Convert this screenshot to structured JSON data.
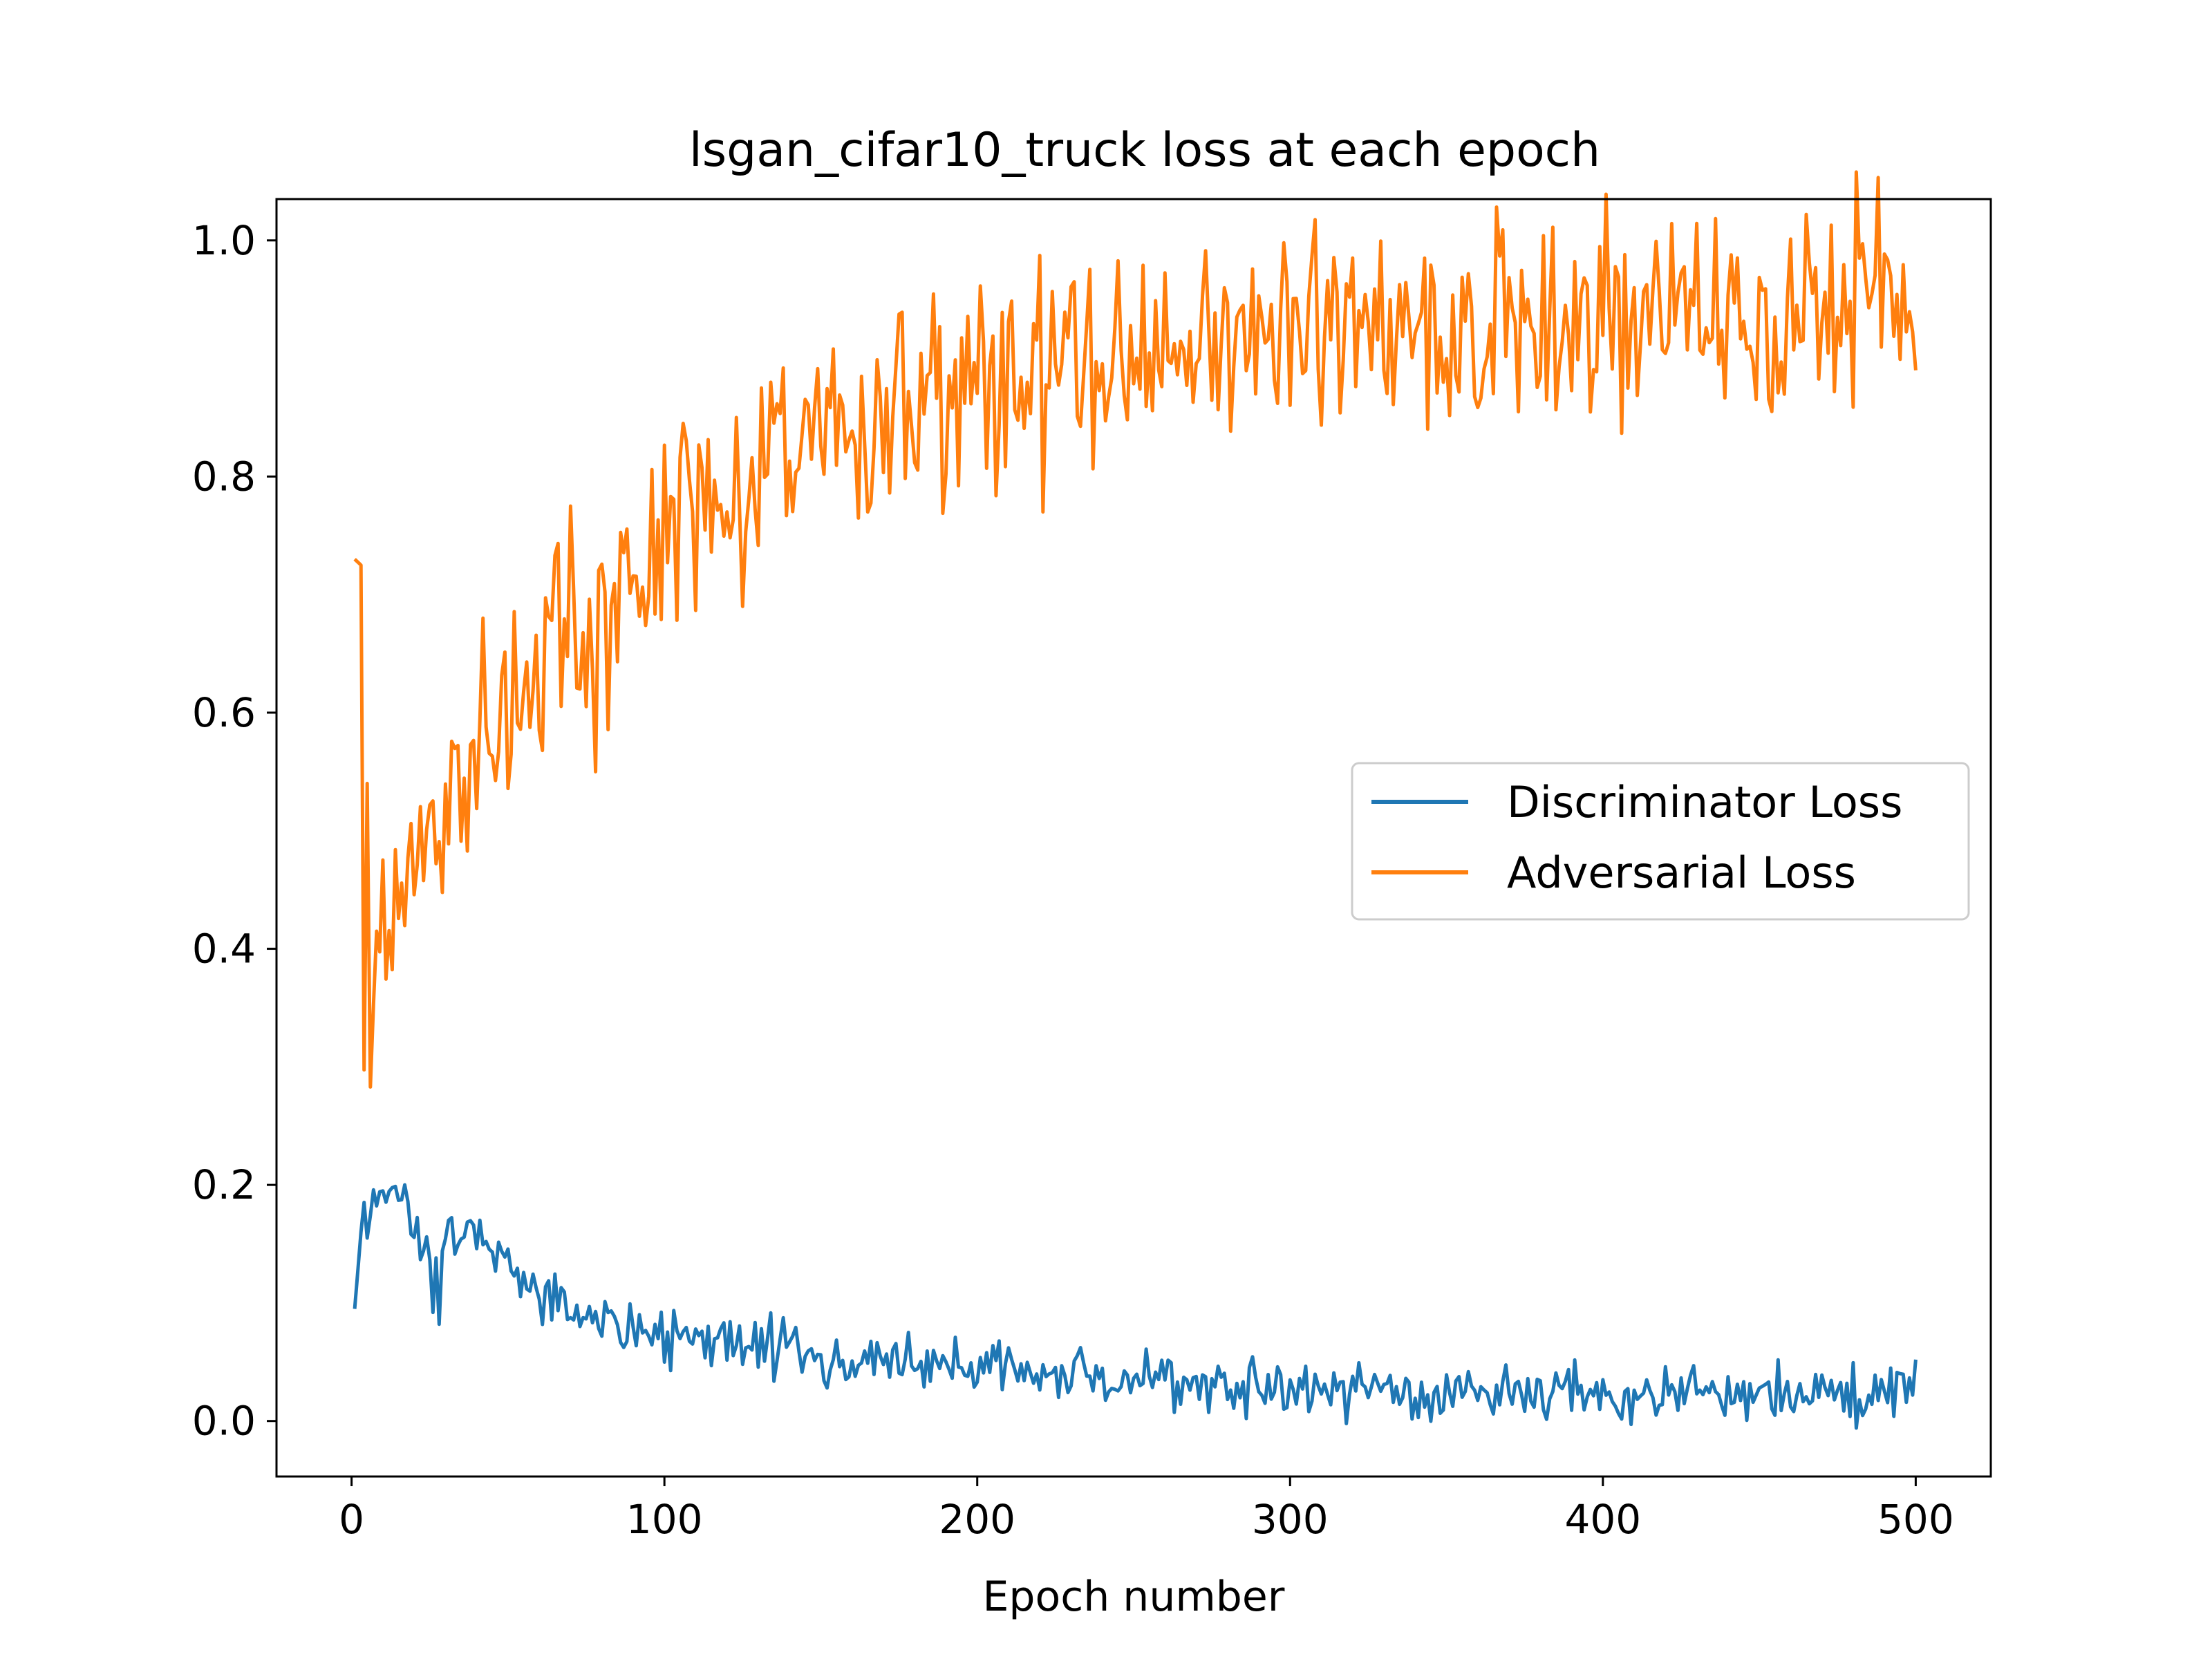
{
  "chart_data": {
    "type": "line",
    "title": "lsgan_cifar10_truck loss at each epoch",
    "xlabel": "Epoch number",
    "ylabel": "",
    "xlim": [
      -24,
      524
    ],
    "ylim": [
      -0.047,
      1.035
    ],
    "xticks": [
      0,
      100,
      200,
      300,
      400,
      500
    ],
    "xtick_labels": [
      "0",
      "100",
      "200",
      "300",
      "400",
      "500"
    ],
    "yticks": [
      0.0,
      0.2,
      0.4,
      0.6,
      0.8,
      1.0
    ],
    "ytick_labels": [
      "0.0",
      "0.2",
      "0.4",
      "0.6",
      "0.8",
      "1.0"
    ],
    "grid": false,
    "legend_position": "center-right",
    "x": {
      "start": 1,
      "end": 500,
      "step": 1
    },
    "series": [
      {
        "name": "Discriminator Loss",
        "color": "#1f77b4",
        "keypoints": [
          [
            1,
            0.095
          ],
          [
            3,
            0.16
          ],
          [
            6,
            0.19
          ],
          [
            10,
            0.19
          ],
          [
            15,
            0.18
          ],
          [
            20,
            0.175
          ],
          [
            25,
            0.12
          ],
          [
            30,
            0.15
          ],
          [
            35,
            0.16
          ],
          [
            40,
            0.165
          ],
          [
            45,
            0.155
          ],
          [
            50,
            0.13
          ],
          [
            55,
            0.12
          ],
          [
            60,
            0.11
          ],
          [
            70,
            0.095
          ],
          [
            80,
            0.085
          ],
          [
            90,
            0.08
          ],
          [
            100,
            0.07
          ],
          [
            120,
            0.065
          ],
          [
            140,
            0.058
          ],
          [
            160,
            0.05
          ],
          [
            180,
            0.048
          ],
          [
            200,
            0.045
          ],
          [
            220,
            0.04
          ],
          [
            250,
            0.036
          ],
          [
            280,
            0.03
          ],
          [
            300,
            0.028
          ],
          [
            350,
            0.025
          ],
          [
            400,
            0.022
          ],
          [
            450,
            0.021
          ],
          [
            499,
            0.022
          ],
          [
            500,
            0.052
          ]
        ],
        "noise": 0.012,
        "events": [
          [
            5,
            0.155
          ],
          [
            17,
            0.2
          ],
          [
            26,
            0.092
          ],
          [
            28,
            0.082
          ],
          [
            31,
            0.17
          ],
          [
            152,
            0.028
          ],
          [
            178,
            0.075
          ],
          [
            226,
            0.02
          ],
          [
            298,
            0.01
          ],
          [
            365,
            0.006
          ],
          [
            420,
            0.046
          ],
          [
            493,
            0.004
          ]
        ]
      },
      {
        "name": "Adversarial Loss",
        "color": "#ff7f0e",
        "keypoints": [
          [
            1,
            0.73
          ],
          [
            3,
            0.725
          ],
          [
            4,
            0.38
          ],
          [
            6,
            0.34
          ],
          [
            8,
            0.45
          ],
          [
            12,
            0.41
          ],
          [
            20,
            0.47
          ],
          [
            30,
            0.51
          ],
          [
            40,
            0.58
          ],
          [
            50,
            0.6
          ],
          [
            60,
            0.63
          ],
          [
            70,
            0.67
          ],
          [
            80,
            0.69
          ],
          [
            90,
            0.72
          ],
          [
            100,
            0.74
          ],
          [
            110,
            0.76
          ],
          [
            120,
            0.78
          ],
          [
            130,
            0.8
          ],
          [
            140,
            0.81
          ],
          [
            150,
            0.82
          ],
          [
            160,
            0.84
          ],
          [
            170,
            0.86
          ],
          [
            180,
            0.86
          ],
          [
            190,
            0.87
          ],
          [
            200,
            0.87
          ],
          [
            220,
            0.88
          ],
          [
            240,
            0.9
          ],
          [
            260,
            0.91
          ],
          [
            280,
            0.91
          ],
          [
            300,
            0.915
          ],
          [
            320,
            0.92
          ],
          [
            350,
            0.93
          ],
          [
            400,
            0.935
          ],
          [
            450,
            0.94
          ],
          [
            498,
            0.955
          ],
          [
            500,
            0.89
          ]
        ],
        "noise": 0.045,
        "events": [
          [
            5,
            0.54
          ],
          [
            42,
            0.68
          ],
          [
            70,
            0.775
          ],
          [
            78,
            0.55
          ],
          [
            106,
            0.845
          ],
          [
            125,
            0.69
          ],
          [
            131,
            0.875
          ],
          [
            165,
            0.77
          ],
          [
            221,
            0.77
          ],
          [
            231,
            0.965
          ],
          [
            320,
            0.985
          ],
          [
            344,
            0.84
          ],
          [
            482,
            0.985
          ]
        ]
      }
    ]
  }
}
